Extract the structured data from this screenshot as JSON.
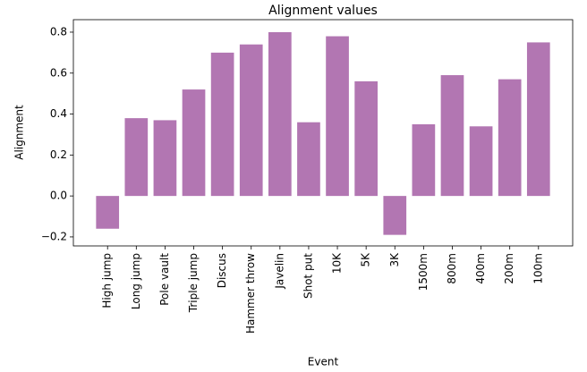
{
  "chart_data": {
    "type": "bar",
    "title": "Alignment values",
    "xlabel": "Event",
    "ylabel": "Alignment",
    "categories": [
      "High jump",
      "Long jump",
      "Pole vault",
      "Triple jump",
      "Discus",
      "Hammer throw",
      "Javelin",
      "Shot put",
      "10K",
      "5K",
      "3K",
      "1500m",
      "800m",
      "400m",
      "200m",
      "100m"
    ],
    "values": [
      -0.16,
      0.38,
      0.37,
      0.52,
      0.7,
      0.74,
      0.8,
      0.36,
      0.78,
      0.56,
      -0.19,
      0.35,
      0.59,
      0.34,
      0.57,
      0.75
    ],
    "color": "#b276b2",
    "ylim": [
      -0.244,
      0.861
    ],
    "yticks": [
      {
        "value": -0.2,
        "label": "−0.2"
      },
      {
        "value": 0,
        "label": "0.0"
      },
      0.2,
      0.4,
      0.6,
      0.8
    ]
  }
}
